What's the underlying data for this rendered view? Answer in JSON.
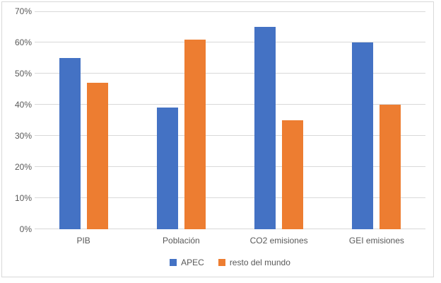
{
  "chart_data": {
    "type": "bar",
    "title": "",
    "xlabel": "",
    "ylabel": "",
    "categories": [
      "PIB",
      "Población",
      "CO2 emisiones",
      "GEI emisiones"
    ],
    "series": [
      {
        "name": "APEC",
        "color": "#4472C4",
        "values": [
          55,
          39,
          65,
          60
        ]
      },
      {
        "name": "resto del mundo",
        "color": "#ED7D31",
        "values": [
          47,
          61,
          35,
          40
        ]
      }
    ],
    "ylim": [
      0,
      70
    ],
    "ytick_step": 10,
    "ytick_labels": [
      "0%",
      "10%",
      "20%",
      "30%",
      "40%",
      "50%",
      "60%",
      "70%"
    ],
    "grid": true,
    "gridline_color": "#D9D9D9",
    "axis_text_color": "#595959",
    "frame_border_color": "#D9D9D9",
    "background_color": "#FFFFFF",
    "legend_position": "bottom-center"
  }
}
